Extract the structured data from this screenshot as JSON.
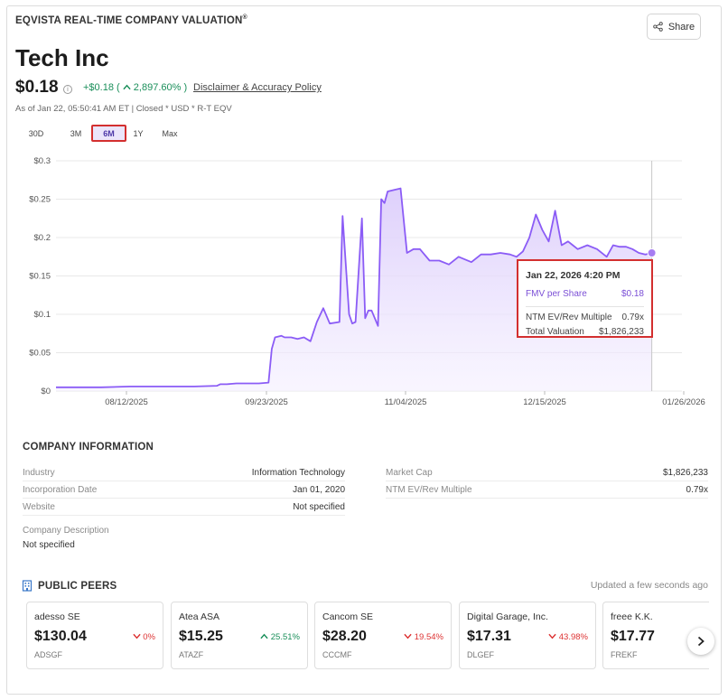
{
  "header": {
    "brand": "EQVISTA REAL-TIME COMPANY VALUATION",
    "brand_mark": "®",
    "share_label": "Share",
    "company_name": "Tech Inc",
    "price": "$0.18",
    "change": "+$0.18 (",
    "change_pct": "2,897.60% )",
    "disclaimer": "Disclaimer & Accuracy Policy",
    "as_of": "As of Jan 22, 05:50:41 AM ET | Closed * USD * R-T EQV"
  },
  "ranges": {
    "r30d": "30D",
    "r3m": "3M",
    "r6m": "6M",
    "r1y": "1Y",
    "rmax": "Max",
    "selected": "6M"
  },
  "chart_data": {
    "type": "area",
    "line_color": "#8b5cf6",
    "fill_color": "#ede4fd",
    "y_ticks": [
      "$0.3",
      "$0.25",
      "$0.2",
      "$0.15",
      "$0.1",
      "$0.05",
      "$0"
    ],
    "x_ticks": [
      "08/12/2025",
      "09/23/2025",
      "11/04/2025",
      "12/15/2025",
      "01/26/2026"
    ],
    "ylim": [
      0,
      0.3
    ],
    "x_range": [
      "2025-07-21",
      "2026-01-28"
    ],
    "grid": true,
    "series": [
      {
        "x": [
          "2025-07-21",
          "2025-08-04",
          "2025-08-13",
          "2025-08-22",
          "2025-09-02",
          "2025-09-09",
          "2025-09-10",
          "2025-09-12",
          "2025-09-15",
          "2025-09-22",
          "2025-09-25",
          "2025-09-26",
          "2025-09-27",
          "2025-09-29",
          "2025-09-30",
          "2025-10-02",
          "2025-10-04",
          "2025-10-06",
          "2025-10-08",
          "2025-10-10",
          "2025-10-12",
          "2025-10-14",
          "2025-10-17",
          "2025-10-18",
          "2025-10-20",
          "2025-10-21",
          "2025-10-22",
          "2025-10-24",
          "2025-10-25",
          "2025-10-26",
          "2025-10-27",
          "2025-10-29",
          "2025-10-30",
          "2025-10-31",
          "2025-11-01",
          "2025-11-03",
          "2025-11-05",
          "2025-11-07",
          "2025-11-09",
          "2025-11-11",
          "2025-11-14",
          "2025-11-17",
          "2025-11-20",
          "2025-11-23",
          "2025-11-27",
          "2025-11-30",
          "2025-12-03",
          "2025-12-06",
          "2025-12-09",
          "2025-12-11",
          "2025-12-13",
          "2025-12-15",
          "2025-12-17",
          "2025-12-19",
          "2025-12-21",
          "2025-12-23",
          "2025-12-25",
          "2025-12-27",
          "2025-12-30",
          "2026-01-02",
          "2026-01-05",
          "2026-01-08",
          "2026-01-10",
          "2026-01-12",
          "2026-01-14",
          "2026-01-16",
          "2026-01-18",
          "2026-01-20",
          "2026-01-22"
        ],
        "y": [
          0.005,
          0.005,
          0.006,
          0.006,
          0.006,
          0.007,
          0.009,
          0.009,
          0.01,
          0.01,
          0.011,
          0.055,
          0.07,
          0.072,
          0.07,
          0.07,
          0.068,
          0.07,
          0.065,
          0.09,
          0.108,
          0.088,
          0.09,
          0.228,
          0.1,
          0.088,
          0.09,
          0.225,
          0.095,
          0.105,
          0.105,
          0.085,
          0.25,
          0.245,
          0.26,
          0.262,
          0.264,
          0.18,
          0.185,
          0.185,
          0.17,
          0.17,
          0.165,
          0.175,
          0.168,
          0.178,
          0.178,
          0.18,
          0.178,
          0.175,
          0.182,
          0.2,
          0.23,
          0.21,
          0.195,
          0.235,
          0.19,
          0.195,
          0.185,
          0.19,
          0.185,
          0.175,
          0.19,
          0.188,
          0.188,
          0.185,
          0.18,
          0.178,
          0.18
        ]
      }
    ],
    "marker": {
      "x": "2026-01-22",
      "y": 0.18
    }
  },
  "tooltip": {
    "date": "Jan 22, 2026 4:20 PM",
    "fmv_label": "FMV per Share",
    "fmv_value": "$0.18",
    "ntm_label": "NTM EV/Rev Multiple",
    "ntm_value": "0.79x",
    "total_label": "Total Valuation",
    "total_value": "$1,826,233"
  },
  "company_info": {
    "title": "COMPANY INFORMATION",
    "industry_label": "Industry",
    "industry_value": "Information Technology",
    "incorporation_label": "Incorporation Date",
    "incorporation_value": "Jan 01, 2020",
    "website_label": "Website",
    "website_value": "Not specified",
    "market_cap_label": "Market Cap",
    "market_cap_value": "$1,826,233",
    "ntm_label": "NTM EV/Rev Multiple",
    "ntm_value": "0.79x",
    "description_label": "Company Description",
    "description_value": "Not specified"
  },
  "peers": {
    "title": "PUBLIC PEERS",
    "updated": "Updated a few seconds ago",
    "items": [
      {
        "name": "adesso SE",
        "price": "$130.04",
        "change": "0%",
        "direction": "down",
        "ticker": "ADSGF"
      },
      {
        "name": "Atea ASA",
        "price": "$15.25",
        "change": "25.51%",
        "direction": "up",
        "ticker": "ATAZF"
      },
      {
        "name": "Cancom SE",
        "price": "$28.20",
        "change": "19.54%",
        "direction": "down",
        "ticker": "CCCMF"
      },
      {
        "name": "Digital Garage, Inc.",
        "price": "$17.31",
        "change": "43.98%",
        "direction": "down",
        "ticker": "DLGEF"
      },
      {
        "name": "freee K.K.",
        "price": "$17.77",
        "change": "",
        "direction": "none",
        "ticker": "FREKF"
      }
    ]
  },
  "colors": {
    "accent": "#8b5cf6",
    "positive": "#1a8f5a",
    "negative": "#d33333",
    "highlight_border": "#d32f2f"
  }
}
